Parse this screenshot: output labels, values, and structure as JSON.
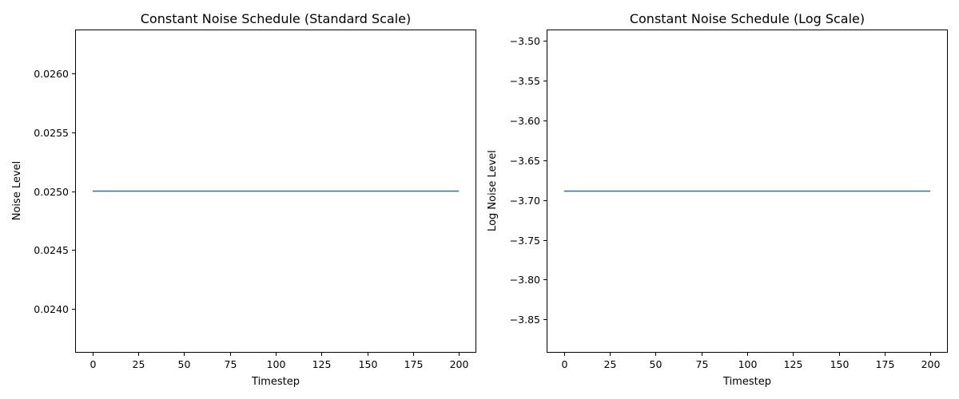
{
  "chart_data": [
    {
      "type": "line",
      "title": "Constant Noise Schedule (Standard Scale)",
      "xlabel": "Timestep",
      "ylabel": "Noise Level",
      "xlim": [
        -9.5,
        209.5
      ],
      "ylim": [
        0.02363,
        0.02637
      ],
      "xticks": [
        0,
        25,
        50,
        75,
        100,
        125,
        150,
        175,
        200
      ],
      "xtick_labels": [
        "0",
        "25",
        "50",
        "75",
        "100",
        "125",
        "150",
        "175",
        "200"
      ],
      "yticks": [
        0.024,
        0.0245,
        0.025,
        0.0255,
        0.026
      ],
      "ytick_labels": [
        "0.0240",
        "0.0245",
        "0.0250",
        "0.0255",
        "0.0260"
      ],
      "grid": false,
      "series": [
        {
          "color": "#1f77b4",
          "x": [
            0,
            200
          ],
          "y": [
            0.025,
            0.025
          ]
        }
      ]
    },
    {
      "type": "line",
      "title": "Constant Noise Schedule (Log Scale)",
      "xlabel": "Timestep",
      "ylabel": "Log Noise Level",
      "xlim": [
        -9.5,
        209.5
      ],
      "ylim": [
        -3.8918,
        -3.4859
      ],
      "xticks": [
        0,
        25,
        50,
        75,
        100,
        125,
        150,
        175,
        200
      ],
      "xtick_labels": [
        "0",
        "25",
        "50",
        "75",
        "100",
        "125",
        "150",
        "175",
        "200"
      ],
      "yticks": [
        -3.5,
        -3.55,
        -3.6,
        -3.65,
        -3.7,
        -3.75,
        -3.8,
        -3.85
      ],
      "ytick_labels": [
        "−3.50",
        "−3.55",
        "−3.60",
        "−3.65",
        "−3.70",
        "−3.75",
        "−3.80",
        "−3.85"
      ],
      "grid": false,
      "series": [
        {
          "color": "#1f77b4",
          "x": [
            0,
            200
          ],
          "y": [
            -3.6889,
            -3.6889
          ]
        }
      ]
    }
  ]
}
